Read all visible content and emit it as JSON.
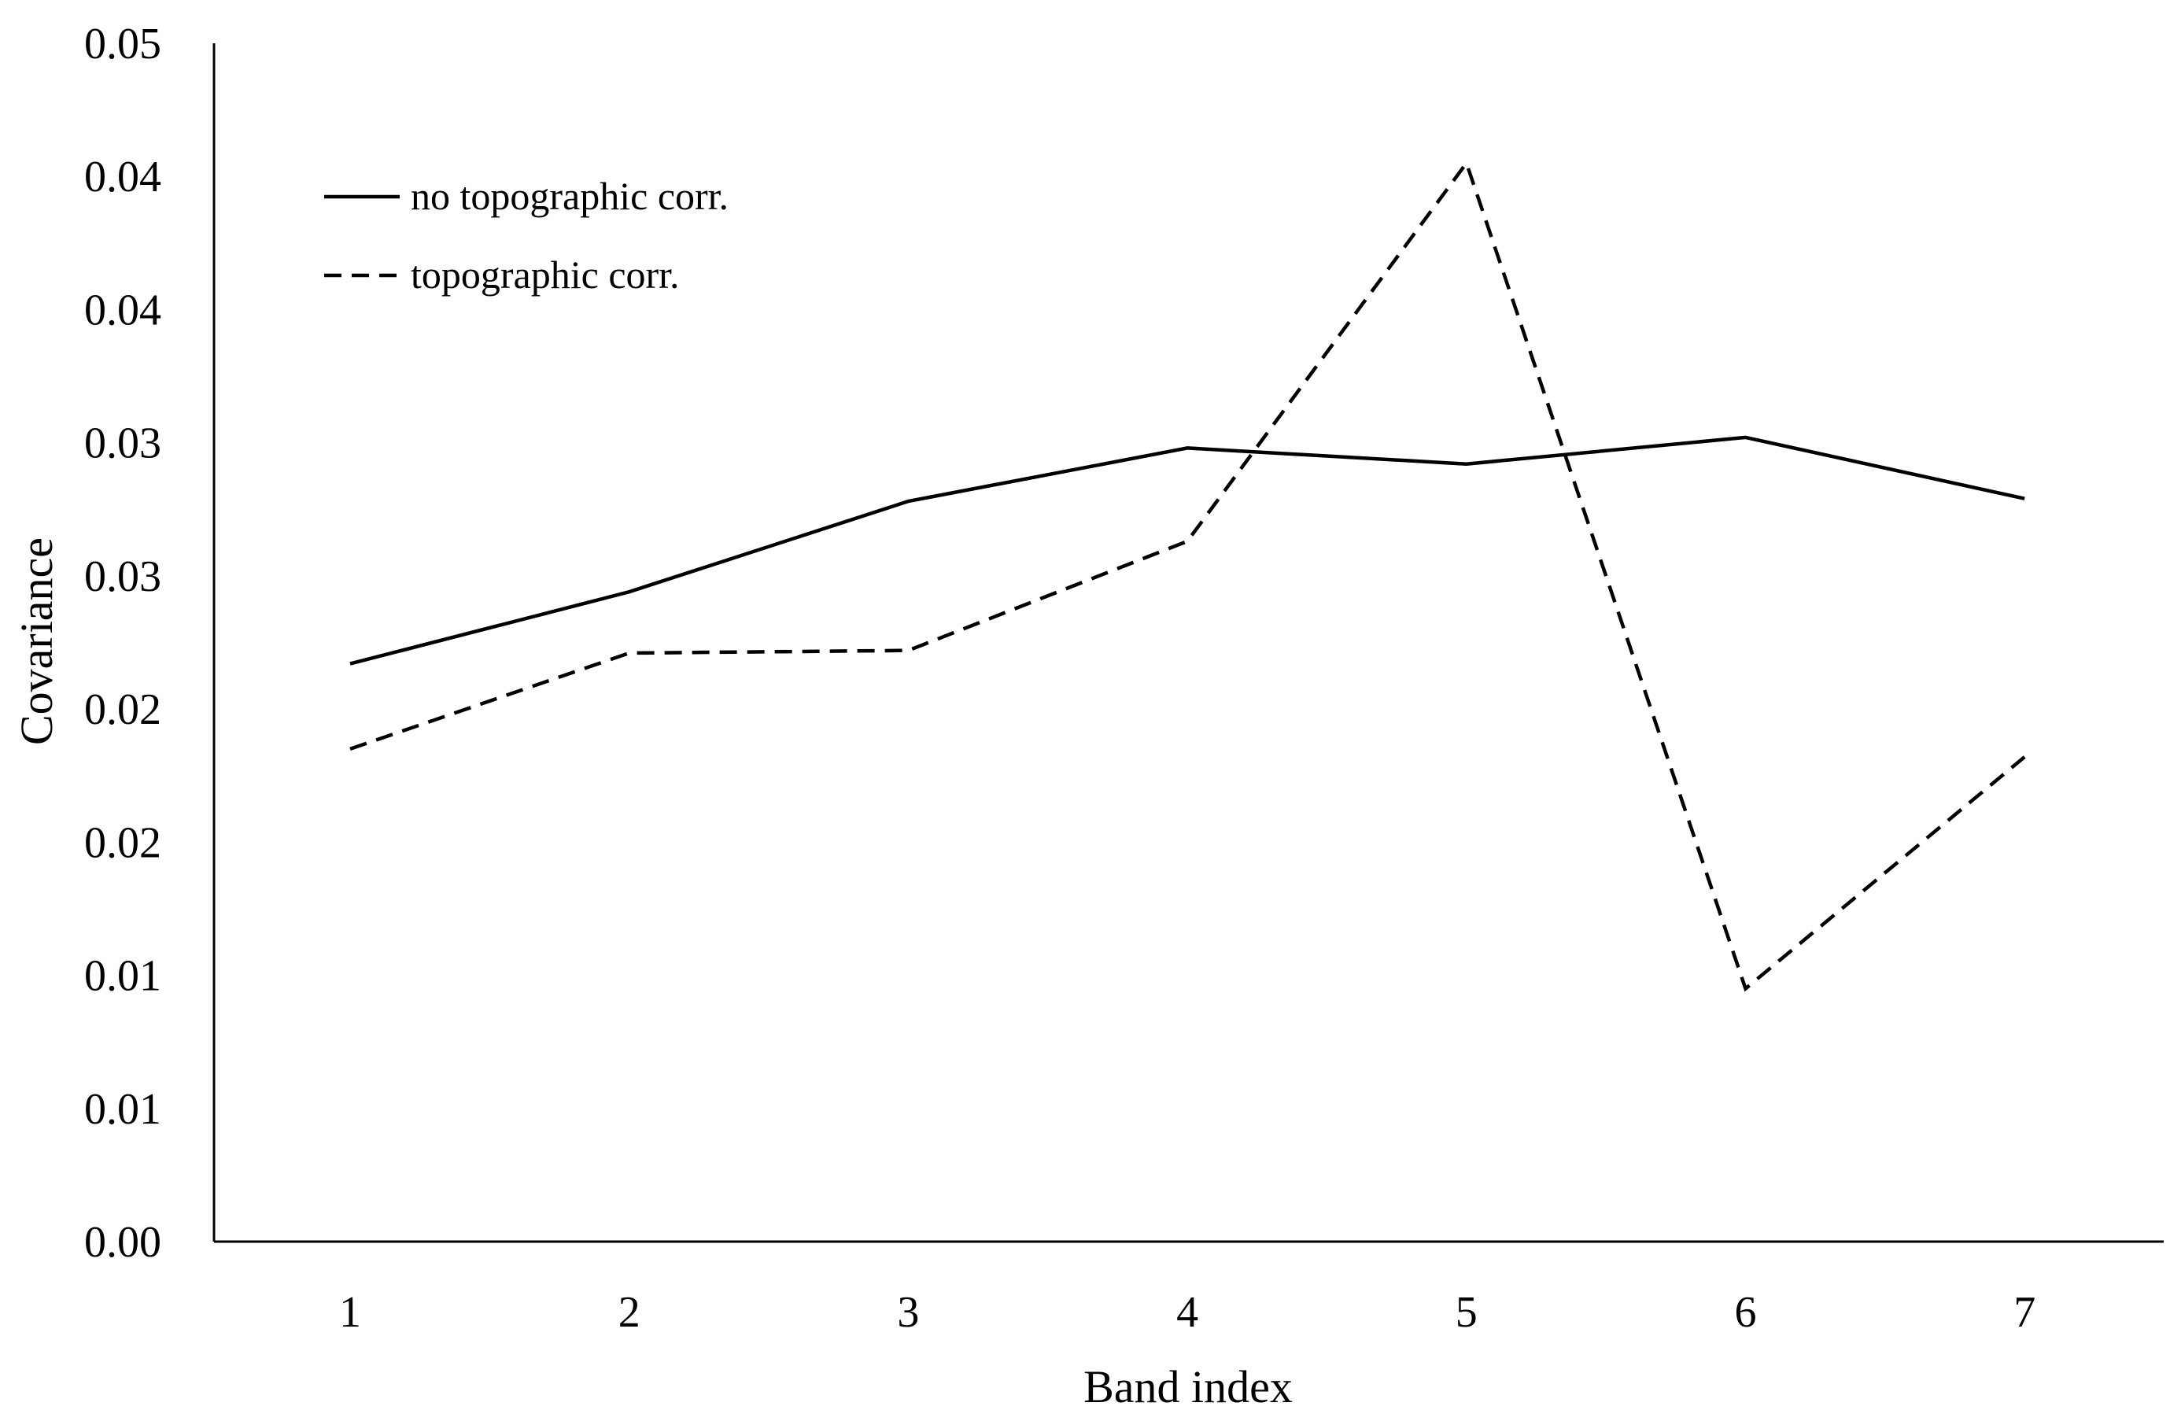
{
  "chart_data": {
    "type": "line",
    "xlabel": "Band index",
    "ylabel": "Covariance",
    "categories": [
      "1",
      "2",
      "3",
      "4",
      "5",
      "6",
      "7"
    ],
    "ylim": [
      0,
      0.045
    ],
    "y_ticks": [
      0,
      0.005,
      0.01,
      0.015,
      0.02,
      0.025,
      0.03,
      0.035,
      0.04,
      0.045
    ],
    "y_tick_labels": [
      "0.00",
      "0.01",
      "0.01",
      "0.02",
      "0.02",
      "0.03",
      "0.03",
      "0.04",
      "0.04",
      "0.05"
    ],
    "grid": false,
    "legend_position": "top-left",
    "series": [
      {
        "name": "no topographic corr.",
        "line_style": "solid",
        "color": "#000000",
        "values": [
          0.0217,
          0.0244,
          0.0278,
          0.0298,
          0.0292,
          0.0302,
          0.0279
        ]
      },
      {
        "name": "topographic corr.",
        "line_style": "dashed",
        "color": "#000000",
        "values": [
          0.0185,
          0.0221,
          0.0222,
          0.0263,
          0.0405,
          0.0095,
          0.0182
        ]
      }
    ]
  }
}
